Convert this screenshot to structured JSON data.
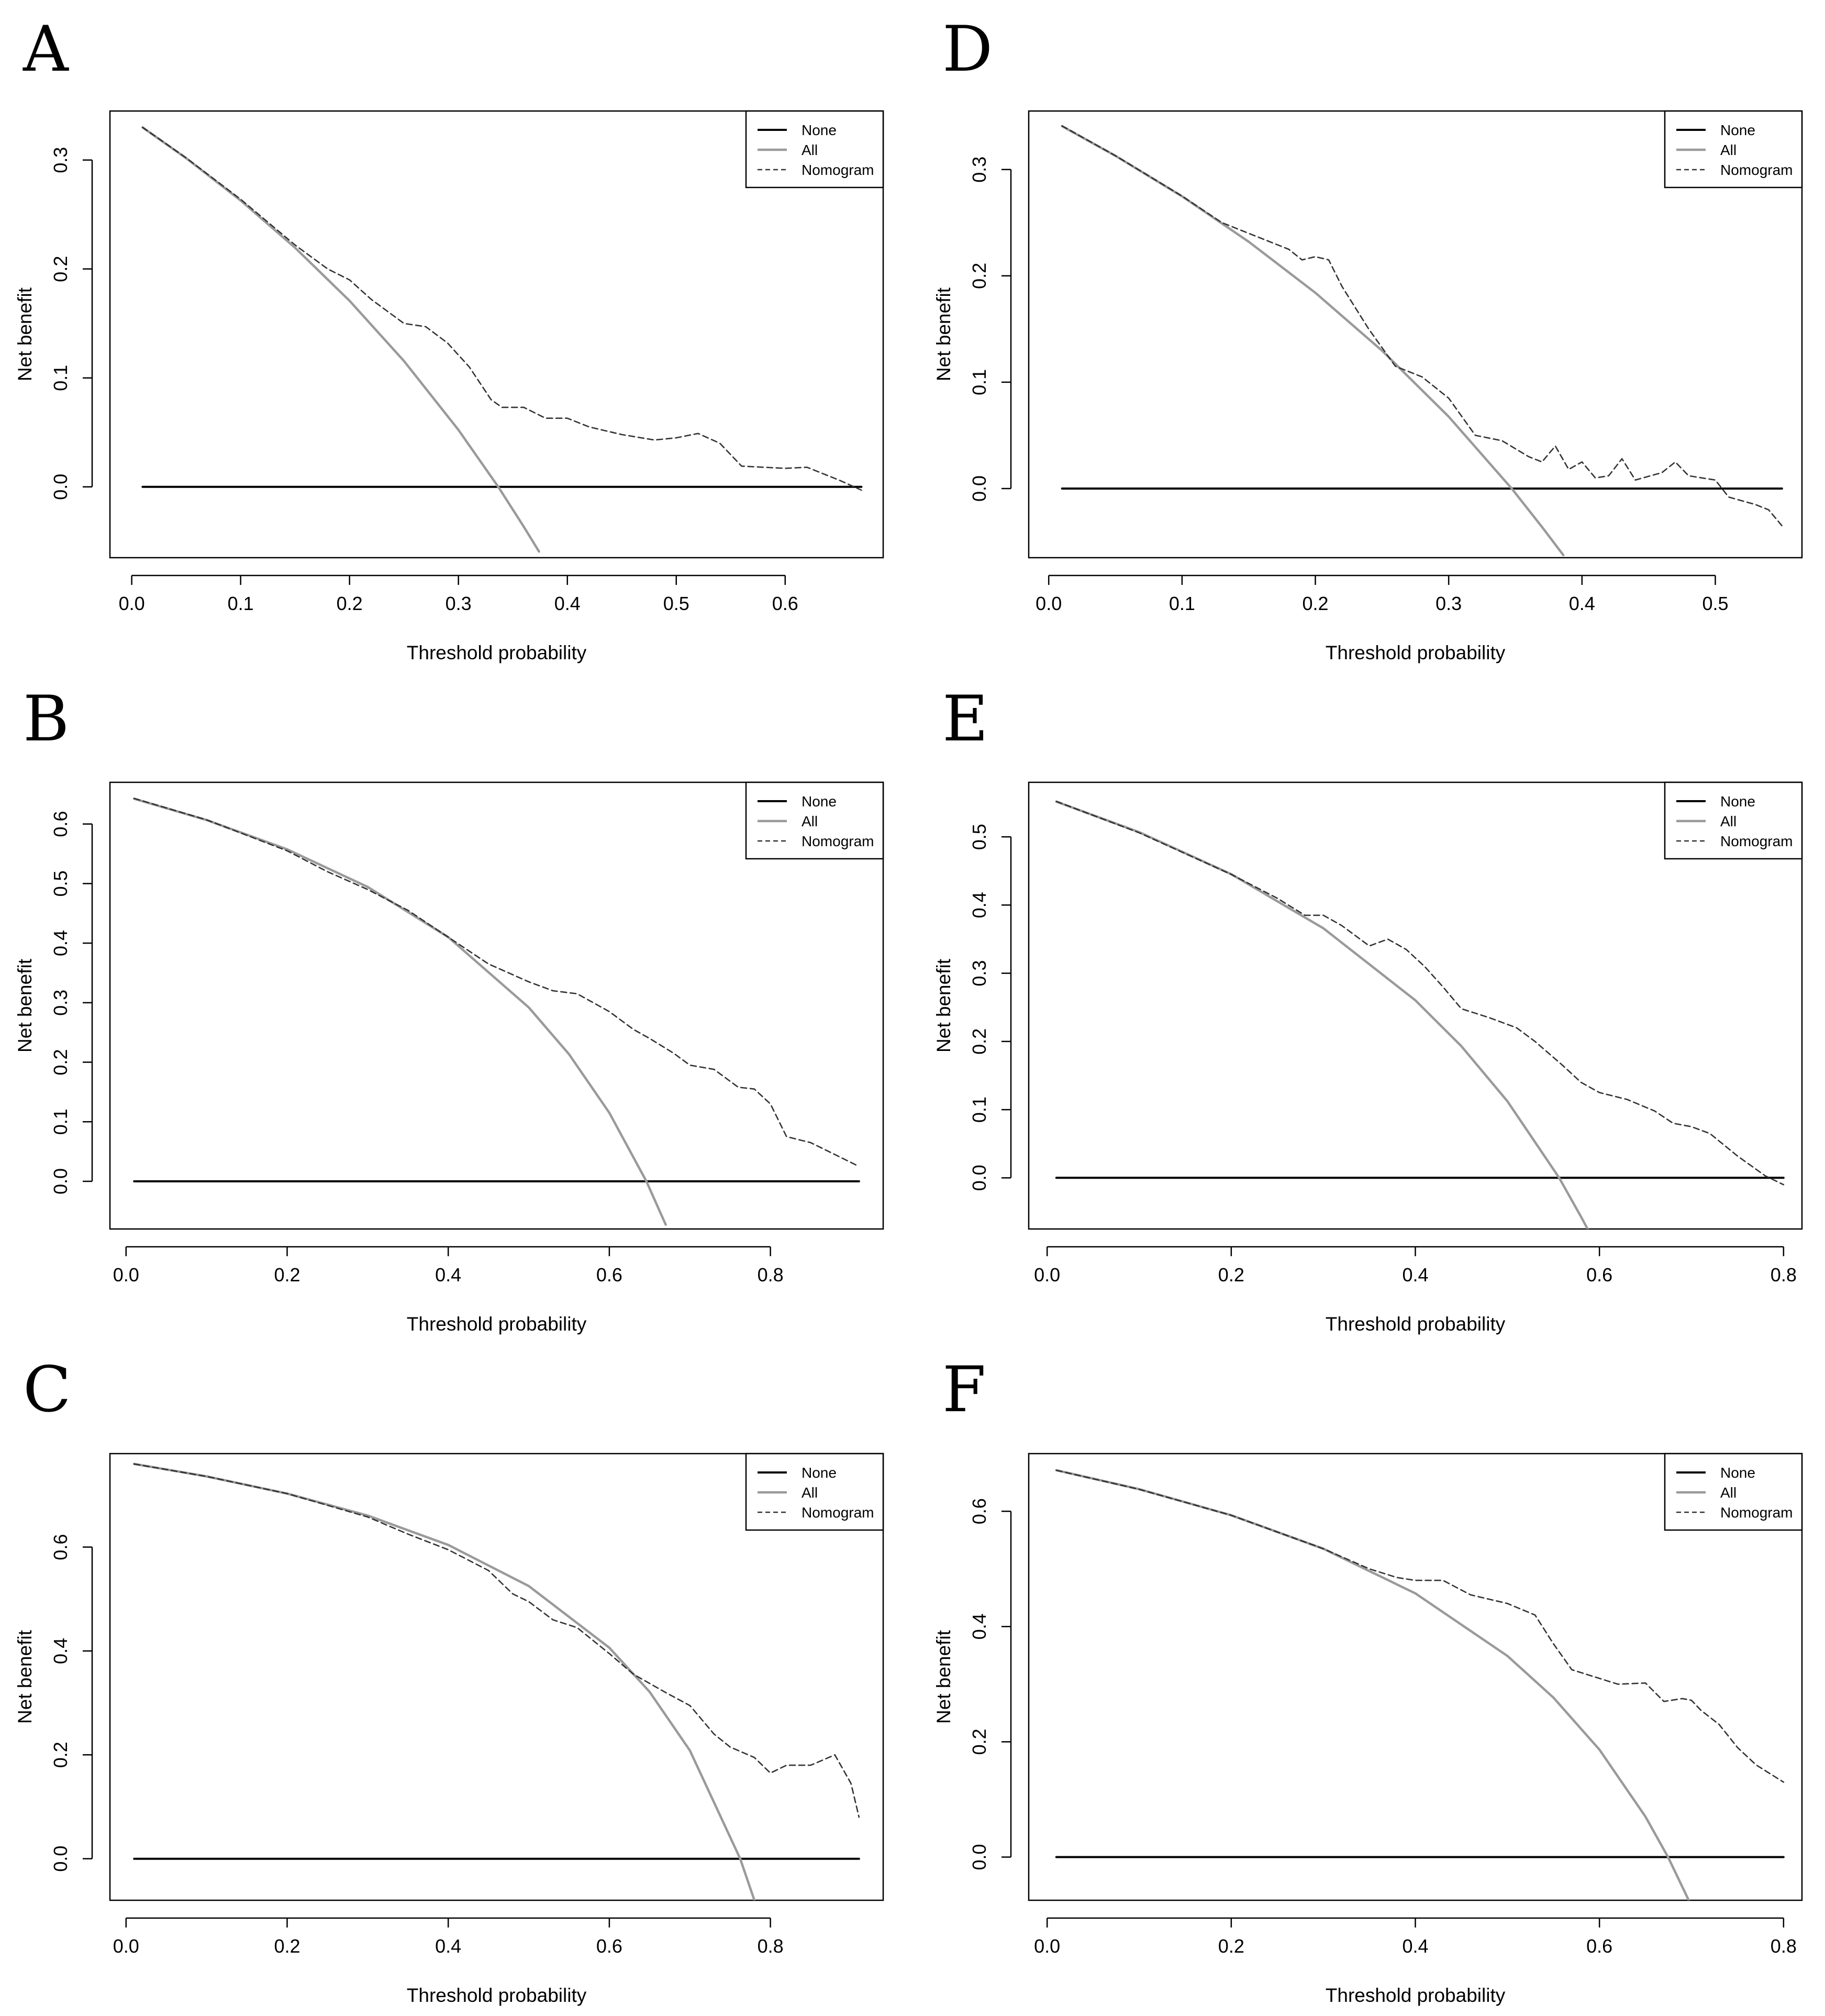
{
  "chart_data": [
    {
      "panel": "A",
      "type": "line",
      "xlabel": "Threshold probability",
      "ylabel": "Net benefit",
      "xlim": [
        -0.02,
        0.69
      ],
      "ylim": [
        -0.065,
        0.345
      ],
      "xticks": [
        0.0,
        0.1,
        0.2,
        0.3,
        0.4,
        0.5,
        0.6
      ],
      "yticks": [
        0.0,
        0.1,
        0.2,
        0.3
      ],
      "legend": [
        "None",
        "All",
        "Nomogram"
      ],
      "legend_position": "top-right",
      "prevalence": 0.3366,
      "series": [
        {
          "name": "None",
          "x": [
            0.01,
            0.67
          ],
          "y": [
            0,
            0
          ]
        },
        {
          "name": "All",
          "x": [
            0.01,
            0.05,
            0.1,
            0.15,
            0.2,
            0.25,
            0.3,
            0.3366,
            0.36,
            0.374
          ],
          "y": [
            0.3299,
            0.3017,
            0.2629,
            0.2195,
            0.1708,
            0.1155,
            0.0523,
            0.0,
            -0.0366,
            -0.0594
          ]
        },
        {
          "name": "Nomogram",
          "x": [
            0.01,
            0.05,
            0.1,
            0.15,
            0.18,
            0.2,
            0.22,
            0.25,
            0.27,
            0.29,
            0.31,
            0.33,
            0.34,
            0.36,
            0.38,
            0.4,
            0.42,
            0.45,
            0.48,
            0.5,
            0.52,
            0.54,
            0.56,
            0.58,
            0.6,
            0.62,
            0.65,
            0.67
          ],
          "y": [
            0.33,
            0.302,
            0.264,
            0.222,
            0.2,
            0.19,
            0.172,
            0.15,
            0.147,
            0.132,
            0.11,
            0.08,
            0.073,
            0.073,
            0.063,
            0.063,
            0.055,
            0.048,
            0.043,
            0.045,
            0.049,
            0.04,
            0.019,
            0.018,
            0.017,
            0.018,
            0.006,
            -0.003
          ]
        }
      ]
    },
    {
      "panel": "B",
      "type": "line",
      "xlabel": "Threshold probability",
      "ylabel": "Net benefit",
      "xlim": [
        -0.02,
        0.94
      ],
      "ylim": [
        -0.08,
        0.67
      ],
      "xticks": [
        0.0,
        0.2,
        0.4,
        0.6,
        0.8
      ],
      "yticks": [
        0.0,
        0.1,
        0.2,
        0.3,
        0.4,
        0.5,
        0.6
      ],
      "legend": [
        "None",
        "All",
        "Nomogram"
      ],
      "legend_position": "top-right",
      "prevalence": 0.646,
      "series": [
        {
          "name": "None",
          "x": [
            0.01,
            0.91
          ],
          "y": [
            0,
            0
          ]
        },
        {
          "name": "All",
          "x": [
            0.01,
            0.1,
            0.2,
            0.3,
            0.4,
            0.5,
            0.55,
            0.6,
            0.646,
            0.67
          ],
          "y": [
            0.6424,
            0.6067,
            0.5575,
            0.4943,
            0.41,
            0.292,
            0.2133,
            0.115,
            0.0,
            -0.0727
          ]
        },
        {
          "name": "Nomogram",
          "x": [
            0.01,
            0.1,
            0.2,
            0.25,
            0.3,
            0.35,
            0.4,
            0.45,
            0.5,
            0.53,
            0.56,
            0.6,
            0.63,
            0.65,
            0.68,
            0.7,
            0.73,
            0.76,
            0.78,
            0.8,
            0.82,
            0.85,
            0.88,
            0.91
          ],
          "y": [
            0.643,
            0.607,
            0.555,
            0.52,
            0.49,
            0.455,
            0.41,
            0.365,
            0.335,
            0.32,
            0.315,
            0.285,
            0.255,
            0.24,
            0.215,
            0.195,
            0.188,
            0.158,
            0.155,
            0.13,
            0.075,
            0.065,
            0.045,
            0.025
          ]
        }
      ]
    },
    {
      "panel": "C",
      "type": "line",
      "xlabel": "Threshold probability",
      "ylabel": "Net benefit",
      "xlim": [
        -0.02,
        0.94
      ],
      "ylim": [
        -0.08,
        0.78
      ],
      "xticks": [
        0.0,
        0.2,
        0.4,
        0.6,
        0.8
      ],
      "yticks": [
        0.0,
        0.2,
        0.4,
        0.6
      ],
      "legend": [
        "None",
        "All",
        "Nomogram"
      ],
      "legend_position": "top-right",
      "prevalence": 0.7625,
      "series": [
        {
          "name": "None",
          "x": [
            0.01,
            0.91
          ],
          "y": [
            0,
            0
          ]
        },
        {
          "name": "All",
          "x": [
            0.01,
            0.1,
            0.2,
            0.3,
            0.4,
            0.5,
            0.6,
            0.65,
            0.7,
            0.7625,
            0.78
          ],
          "y": [
            0.7601,
            0.7361,
            0.7031,
            0.6607,
            0.6042,
            0.525,
            0.4063,
            0.3214,
            0.2083,
            0.0,
            -0.0795
          ]
        },
        {
          "name": "Nomogram",
          "x": [
            0.01,
            0.1,
            0.2,
            0.3,
            0.35,
            0.4,
            0.45,
            0.48,
            0.5,
            0.53,
            0.56,
            0.6,
            0.63,
            0.67,
            0.7,
            0.73,
            0.75,
            0.78,
            0.8,
            0.82,
            0.85,
            0.88,
            0.9,
            0.91
          ],
          "y": [
            0.76,
            0.736,
            0.703,
            0.658,
            0.625,
            0.595,
            0.555,
            0.51,
            0.495,
            0.46,
            0.445,
            0.395,
            0.355,
            0.32,
            0.295,
            0.24,
            0.215,
            0.195,
            0.165,
            0.18,
            0.18,
            0.2,
            0.145,
            0.08
          ]
        }
      ]
    },
    {
      "panel": "D",
      "type": "line",
      "xlabel": "Threshold probability",
      "ylabel": "Net benefit",
      "xlim": [
        -0.015,
        0.565
      ],
      "ylim": [
        -0.065,
        0.355
      ],
      "xticks": [
        0.0,
        0.1,
        0.2,
        0.3,
        0.4,
        0.5
      ],
      "yticks": [
        0.0,
        0.1,
        0.2,
        0.3
      ],
      "legend": [
        "None",
        "All",
        "Nomogram"
      ],
      "legend_position": "top-right",
      "prevalence": 0.3473,
      "series": [
        {
          "name": "None",
          "x": [
            0.01,
            0.55
          ],
          "y": [
            0,
            0
          ]
        },
        {
          "name": "All",
          "x": [
            0.01,
            0.05,
            0.1,
            0.15,
            0.2,
            0.25,
            0.3,
            0.3473,
            0.37,
            0.386
          ],
          "y": [
            0.3407,
            0.3129,
            0.2748,
            0.2321,
            0.1841,
            0.1297,
            0.0676,
            0.0,
            -0.0361,
            -0.0626
          ]
        },
        {
          "name": "Nomogram",
          "x": [
            0.01,
            0.05,
            0.1,
            0.13,
            0.15,
            0.17,
            0.18,
            0.19,
            0.2,
            0.21,
            0.22,
            0.24,
            0.26,
            0.28,
            0.3,
            0.32,
            0.34,
            0.36,
            0.37,
            0.38,
            0.39,
            0.4,
            0.41,
            0.42,
            0.43,
            0.44,
            0.46,
            0.47,
            0.48,
            0.49,
            0.5,
            0.51,
            0.53,
            0.54,
            0.55
          ],
          "y": [
            0.341,
            0.313,
            0.275,
            0.25,
            0.24,
            0.23,
            0.225,
            0.215,
            0.218,
            0.215,
            0.19,
            0.15,
            0.115,
            0.105,
            0.085,
            0.05,
            0.045,
            0.03,
            0.025,
            0.04,
            0.018,
            0.025,
            0.01,
            0.012,
            0.028,
            0.008,
            0.015,
            0.025,
            0.012,
            0.01,
            0.008,
            -0.008,
            -0.015,
            -0.02,
            -0.035
          ]
        }
      ]
    },
    {
      "panel": "E",
      "type": "line",
      "xlabel": "Threshold probability",
      "ylabel": "Net benefit",
      "xlim": [
        -0.02,
        0.82
      ],
      "ylim": [
        -0.075,
        0.58
      ],
      "xticks": [
        0.0,
        0.2,
        0.4,
        0.6,
        0.8
      ],
      "yticks": [
        0.0,
        0.1,
        0.2,
        0.3,
        0.4,
        0.5
      ],
      "legend": [
        "None",
        "All",
        "Nomogram"
      ],
      "legend_position": "top-right",
      "prevalence": 0.5562,
      "series": [
        {
          "name": "None",
          "x": [
            0.01,
            0.8
          ],
          "y": [
            0,
            0
          ]
        },
        {
          "name": "All",
          "x": [
            0.01,
            0.1,
            0.2,
            0.3,
            0.4,
            0.45,
            0.5,
            0.5562,
            0.58,
            0.59
          ],
          "y": [
            0.5517,
            0.5069,
            0.4453,
            0.366,
            0.2603,
            0.1931,
            0.1124,
            0.0,
            -0.0571,
            -0.0822
          ]
        },
        {
          "name": "Nomogram",
          "x": [
            0.01,
            0.1,
            0.2,
            0.25,
            0.28,
            0.3,
            0.32,
            0.35,
            0.37,
            0.39,
            0.41,
            0.43,
            0.45,
            0.48,
            0.51,
            0.53,
            0.56,
            0.58,
            0.6,
            0.63,
            0.66,
            0.68,
            0.7,
            0.72,
            0.75,
            0.78,
            0.8
          ],
          "y": [
            0.552,
            0.506,
            0.445,
            0.41,
            0.385,
            0.385,
            0.37,
            0.34,
            0.35,
            0.335,
            0.31,
            0.28,
            0.248,
            0.235,
            0.22,
            0.2,
            0.165,
            0.14,
            0.125,
            0.115,
            0.098,
            0.08,
            0.075,
            0.065,
            0.032,
            0.003,
            -0.01
          ]
        }
      ]
    },
    {
      "panel": "F",
      "type": "line",
      "xlabel": "Threshold probability",
      "ylabel": "Net benefit",
      "xlim": [
        -0.02,
        0.82
      ],
      "ylim": [
        -0.075,
        0.7
      ],
      "xticks": [
        0.0,
        0.2,
        0.4,
        0.6,
        0.8
      ],
      "yticks": [
        0.0,
        0.2,
        0.4,
        0.6
      ],
      "legend": [
        "None",
        "All",
        "Nomogram"
      ],
      "legend_position": "top-right",
      "prevalence": 0.6745,
      "series": [
        {
          "name": "None",
          "x": [
            0.01,
            0.8
          ],
          "y": [
            0,
            0
          ]
        },
        {
          "name": "All",
          "x": [
            0.01,
            0.1,
            0.2,
            0.3,
            0.4,
            0.5,
            0.55,
            0.6,
            0.65,
            0.6745,
            0.7
          ],
          "y": [
            0.6712,
            0.6383,
            0.5931,
            0.535,
            0.4575,
            0.349,
            0.2766,
            0.1863,
            0.07,
            0.0,
            -0.085
          ]
        },
        {
          "name": "Nomogram",
          "x": [
            0.01,
            0.1,
            0.2,
            0.3,
            0.35,
            0.38,
            0.4,
            0.43,
            0.46,
            0.5,
            0.53,
            0.55,
            0.57,
            0.6,
            0.62,
            0.65,
            0.67,
            0.69,
            0.7,
            0.71,
            0.73,
            0.75,
            0.77,
            0.8
          ],
          "y": [
            0.671,
            0.638,
            0.593,
            0.535,
            0.5,
            0.485,
            0.48,
            0.48,
            0.455,
            0.44,
            0.42,
            0.37,
            0.325,
            0.31,
            0.3,
            0.302,
            0.27,
            0.275,
            0.272,
            0.255,
            0.23,
            0.19,
            0.16,
            0.13
          ]
        }
      ]
    }
  ]
}
